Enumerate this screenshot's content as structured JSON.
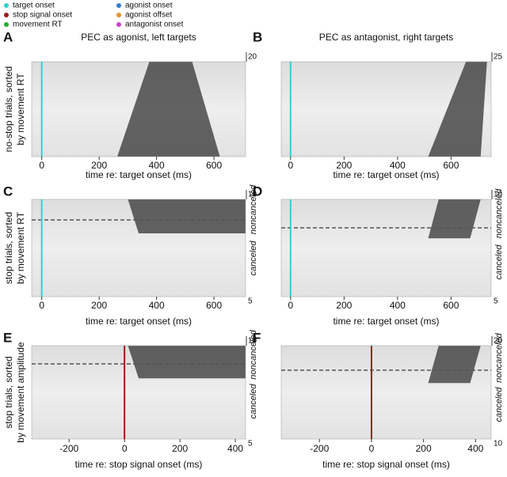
{
  "chart_data": [
    {
      "type": "raster",
      "letter": "A",
      "title": "PEC as agonist, left targets",
      "xlabel": "time re: target onset (ms)",
      "ylabel": [
        "no-stop trials, sorted",
        "by movement RT"
      ],
      "xlim": [
        -35,
        710
      ],
      "xticks": [
        0,
        200,
        400,
        600
      ],
      "event_line": 0,
      "event_color": "#2ad4d4",
      "hist_top": "20"
    },
    {
      "type": "raster",
      "letter": "B",
      "title": "PEC as antagonist, right targets",
      "xlabel": "time re: target onset (ms)",
      "xlim": [
        -35,
        750
      ],
      "xticks": [
        0,
        200,
        400,
        600
      ],
      "event_line": 0,
      "event_color": "#2ad4d4",
      "hist_top": "25"
    },
    {
      "type": "raster",
      "letter": "C",
      "xlabel": "time re: target onset (ms)",
      "ylabel": [
        "stop trials, sorted",
        "by movement RT"
      ],
      "xlim": [
        -35,
        710
      ],
      "xticks": [
        0,
        200,
        400,
        600
      ],
      "event_line": 0,
      "event_color": "#2ad4d4",
      "hist_top": "10",
      "hist_bottom": "5",
      "groups": [
        "noncanceled",
        "canceled"
      ]
    },
    {
      "type": "raster",
      "letter": "D",
      "xlabel": "time re: target onset (ms)",
      "xlim": [
        -35,
        750
      ],
      "xticks": [
        0,
        200,
        400,
        600
      ],
      "event_line": 0,
      "event_color": "#2ad4d4",
      "hist_top": "10",
      "hist_bottom": "5",
      "groups": [
        "noncanceled",
        "canceled"
      ]
    },
    {
      "type": "raster",
      "letter": "E",
      "xlabel": "time re: stop signal onset (ms)",
      "ylabel": [
        "stop trials, sorted",
        "by movement amplitude"
      ],
      "xlim": [
        -335,
        437
      ],
      "xticks": [
        -200,
        0,
        200,
        400
      ],
      "event_line": 0,
      "event_color": "#a01818",
      "hist_top": "10",
      "hist_bottom": "5",
      "groups": [
        "noncanceled",
        "canceled"
      ]
    },
    {
      "type": "raster",
      "letter": "F",
      "xlabel": "time re: stop signal onset (ms)",
      "xlim": [
        -347,
        460
      ],
      "xticks": [
        -200,
        0,
        200,
        400
      ],
      "event_line": 0,
      "event_color": "#a01818",
      "hist_top": "20",
      "hist_bottom": "10",
      "groups": [
        "noncanceled",
        "canceled"
      ]
    }
  ],
  "legend": [
    {
      "label": "target onset",
      "color": "#2ad4d4"
    },
    {
      "label": "stop signal onset",
      "color": "#a01818"
    },
    {
      "label": "movement RT",
      "color": "#22b022"
    },
    {
      "label": "agonist onset",
      "color": "#2a7fd4"
    },
    {
      "label": "agonist offset",
      "color": "#f0902a"
    },
    {
      "label": "antagonist onset",
      "color": "#d43ad4"
    }
  ]
}
